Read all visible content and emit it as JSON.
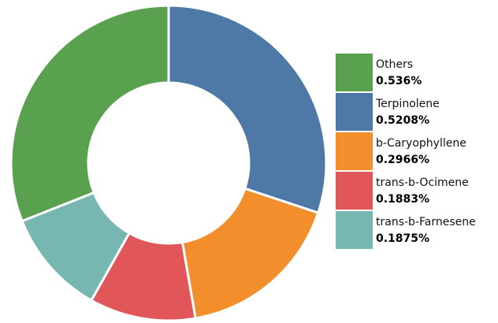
{
  "chart_data": {
    "type": "pie",
    "donut": true,
    "legend_position": "right",
    "slices": [
      {
        "label": "Terpinolene",
        "value": 0.5208,
        "display": "0.5208%",
        "color": "#4e79a7"
      },
      {
        "label": "b-Caryophyllene",
        "value": 0.2966,
        "display": "0.2966%",
        "color": "#f28e2b"
      },
      {
        "label": "trans-b-Ocimene",
        "value": 0.1883,
        "display": "0.1883%",
        "color": "#e15759"
      },
      {
        "label": "trans-b-Farnesene",
        "value": 0.1875,
        "display": "0.1875%",
        "color": "#76b7b2"
      },
      {
        "label": "Others",
        "value": 0.536,
        "display": "0.536%",
        "color": "#59a14f"
      }
    ],
    "legend_order": [
      "Others",
      "Terpinolene",
      "b-Caryophyllene",
      "trans-b-Ocimene",
      "trans-b-Farnesene"
    ]
  }
}
